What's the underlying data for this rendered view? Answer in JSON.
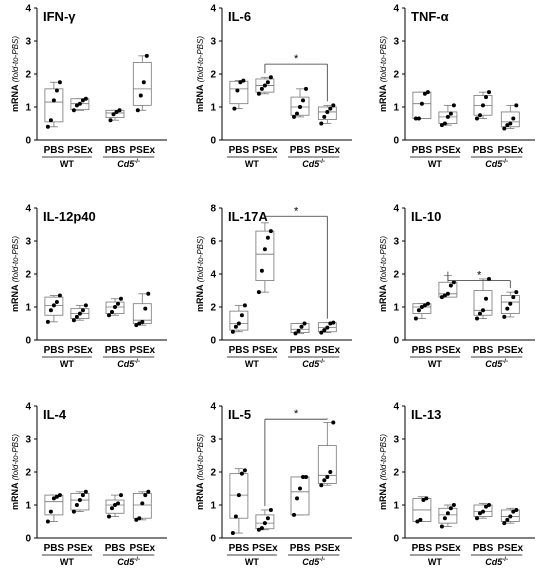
{
  "figure": {
    "y_label_main": "mRNA",
    "y_label_sub": "(fold-to-PBS)",
    "groups": [
      "WT",
      "Cd5"
    ],
    "group_sup": "-/-",
    "group_italic": [
      false,
      true
    ]
  },
  "chart_data": [
    {
      "type": "box",
      "title": "IFN-γ",
      "ylim": [
        0,
        4
      ],
      "yticks": [
        0,
        1,
        2,
        3,
        4
      ],
      "categories": [
        "PBS",
        "PSEx",
        "PBS",
        "PSEx"
      ],
      "series": [
        {
          "name": "WT PBS",
          "points": [
            0.4,
            0.6,
            1.2,
            1.5,
            1.75
          ],
          "box": [
            0.55,
            1.15,
            1.55
          ],
          "whisker": [
            0.4,
            1.75
          ]
        },
        {
          "name": "WT PSEx",
          "points": [
            0.9,
            1.05,
            1.1,
            1.2,
            1.25
          ],
          "box": [
            0.92,
            1.1,
            1.25
          ],
          "whisker": [
            0.9,
            1.25
          ]
        },
        {
          "name": "Cd5-/- PBS",
          "points": [
            0.6,
            0.78,
            0.85,
            0.9
          ],
          "box": [
            0.68,
            0.82,
            0.9
          ],
          "whisker": [
            0.6,
            0.9
          ]
        },
        {
          "name": "Cd5-/- PSEx",
          "points": [
            0.9,
            1.35,
            1.75,
            2.55
          ],
          "box": [
            1.05,
            1.55,
            2.35
          ],
          "whisker": [
            0.9,
            2.55
          ]
        }
      ],
      "significance": null
    },
    {
      "type": "box",
      "title": "IL-6",
      "ylim": [
        0,
        4
      ],
      "yticks": [
        0,
        1,
        2,
        3,
        4
      ],
      "categories": [
        "PBS",
        "PSEx",
        "PBS",
        "PSEx"
      ],
      "series": [
        {
          "name": "WT PBS",
          "points": [
            0.95,
            1.5,
            1.75,
            1.8
          ],
          "box": [
            1.1,
            1.55,
            1.78
          ],
          "whisker": [
            0.95,
            1.8
          ]
        },
        {
          "name": "WT PSEx",
          "points": [
            1.4,
            1.55,
            1.65,
            1.75,
            1.9
          ],
          "box": [
            1.45,
            1.65,
            1.85
          ],
          "whisker": [
            1.4,
            1.9
          ]
        },
        {
          "name": "Cd5-/- PBS",
          "points": [
            0.7,
            0.8,
            1.0,
            1.2,
            1.55
          ],
          "box": [
            0.75,
            1.0,
            1.3
          ],
          "whisker": [
            0.7,
            1.55
          ]
        },
        {
          "name": "Cd5-/- PSEx",
          "points": [
            0.5,
            0.7,
            0.85,
            0.95,
            1.05
          ],
          "box": [
            0.62,
            0.85,
            1.0
          ],
          "whisker": [
            0.5,
            1.05
          ]
        }
      ],
      "significance": {
        "from": 1,
        "to": 3,
        "y": 2.3,
        "label": "*"
      }
    },
    {
      "type": "box",
      "title": "TNF-α",
      "ylim": [
        0,
        4
      ],
      "yticks": [
        0,
        1,
        2,
        3,
        4
      ],
      "categories": [
        "PBS",
        "PSEx",
        "PBS",
        "PSEx"
      ],
      "series": [
        {
          "name": "WT PBS",
          "points": [
            0.65,
            0.65,
            1.1,
            1.4,
            1.45
          ],
          "box": [
            0.65,
            1.1,
            1.45
          ],
          "whisker": [
            0.65,
            1.45
          ]
        },
        {
          "name": "WT PSEx",
          "points": [
            0.45,
            0.5,
            0.7,
            0.8,
            1.05
          ],
          "box": [
            0.5,
            0.7,
            0.85
          ],
          "whisker": [
            0.45,
            1.05
          ]
        },
        {
          "name": "Cd5-/- PBS",
          "points": [
            0.65,
            0.75,
            1.05,
            1.3,
            1.45
          ],
          "box": [
            0.75,
            1.05,
            1.35
          ],
          "whisker": [
            0.65,
            1.45
          ]
        },
        {
          "name": "Cd5-/- PSEx",
          "points": [
            0.35,
            0.45,
            0.5,
            0.65,
            1.05
          ],
          "box": [
            0.4,
            0.55,
            0.85
          ],
          "whisker": [
            0.35,
            1.05
          ]
        }
      ],
      "significance": null
    },
    {
      "type": "box",
      "title": "IL-12p40",
      "ylim": [
        0,
        4
      ],
      "yticks": [
        0,
        1,
        2,
        3,
        4
      ],
      "categories": [
        "PBS",
        "PSEx",
        "PBS",
        "PSEx"
      ],
      "series": [
        {
          "name": "WT PBS",
          "points": [
            0.55,
            0.9,
            1.05,
            1.15,
            1.35
          ],
          "box": [
            0.75,
            1.05,
            1.3
          ],
          "whisker": [
            0.55,
            1.35
          ]
        },
        {
          "name": "WT PSEx",
          "points": [
            0.6,
            0.7,
            0.8,
            0.9,
            1.05
          ],
          "box": [
            0.65,
            0.8,
            0.95
          ],
          "whisker": [
            0.6,
            1.05
          ]
        },
        {
          "name": "Cd5-/- PBS",
          "points": [
            0.75,
            0.85,
            1.0,
            1.1,
            1.25
          ],
          "box": [
            0.8,
            1.0,
            1.15
          ],
          "whisker": [
            0.75,
            1.25
          ]
        },
        {
          "name": "Cd5-/- PSEx",
          "points": [
            0.45,
            0.5,
            0.55,
            0.95,
            1.4
          ],
          "box": [
            0.5,
            0.6,
            1.1
          ],
          "whisker": [
            0.45,
            1.4
          ]
        }
      ],
      "significance": null
    },
    {
      "type": "box",
      "title": "IL-17A",
      "ylim": [
        0,
        8
      ],
      "yticks": [
        0,
        2,
        4,
        6,
        8
      ],
      "categories": [
        "PBS",
        "PSEx",
        "PBS",
        "PSEx"
      ],
      "series": [
        {
          "name": "WT PBS",
          "points": [
            0.5,
            0.8,
            1.0,
            1.5,
            2.1
          ],
          "box": [
            0.6,
            1.0,
            1.75
          ],
          "whisker": [
            0.5,
            2.1
          ]
        },
        {
          "name": "WT PSEx",
          "points": [
            2.9,
            4.2,
            5.5,
            6.2,
            6.6
          ],
          "box": [
            3.6,
            5.2,
            6.6
          ],
          "whisker": [
            2.9,
            7.1
          ]
        },
        {
          "name": "Cd5-/- PBS",
          "points": [
            0.4,
            0.55,
            0.8,
            1.0
          ],
          "box": [
            0.45,
            0.65,
            1.0
          ],
          "whisker": [
            0.4,
            1.0
          ]
        },
        {
          "name": "Cd5-/- PSEx",
          "points": [
            0.45,
            0.6,
            0.75,
            1.0,
            1.05
          ],
          "box": [
            0.5,
            0.75,
            1.05
          ],
          "whisker": [
            0.45,
            1.05
          ]
        }
      ],
      "significance": {
        "from": 1,
        "to": 3,
        "y": 7.5,
        "label": "*"
      }
    },
    {
      "type": "box",
      "title": "IL-10",
      "ylim": [
        0,
        4
      ],
      "yticks": [
        0,
        1,
        2,
        3,
        4
      ],
      "categories": [
        "PBS",
        "PSEx",
        "PBS",
        "PSEx"
      ],
      "series": [
        {
          "name": "WT PBS",
          "points": [
            0.65,
            0.9,
            1.0,
            1.05,
            1.1
          ],
          "box": [
            0.8,
            1.0,
            1.1
          ],
          "whisker": [
            0.65,
            1.1
          ]
        },
        {
          "name": "WT PSEx",
          "points": [
            1.3,
            1.35,
            1.4,
            1.65,
            1.75
          ],
          "box": [
            1.3,
            1.4,
            1.75
          ],
          "whisker": [
            1.3,
            1.95
          ]
        },
        {
          "name": "Cd5-/- PBS",
          "points": [
            0.65,
            0.8,
            0.9,
            1.25,
            1.85
          ],
          "box": [
            0.75,
            0.9,
            1.5
          ],
          "whisker": [
            0.65,
            1.85
          ]
        },
        {
          "name": "Cd5-/- PSEx",
          "points": [
            0.7,
            0.95,
            1.1,
            1.3,
            1.45
          ],
          "box": [
            0.8,
            1.15,
            1.35
          ],
          "whisker": [
            0.7,
            1.45
          ]
        }
      ],
      "significance": {
        "from": 1,
        "to": 3,
        "y": 1.8,
        "label": "*"
      }
    },
    {
      "type": "box",
      "title": "IL-4",
      "ylim": [
        0,
        4
      ],
      "yticks": [
        0,
        1,
        2,
        3,
        4
      ],
      "categories": [
        "PBS",
        "PSEx",
        "PBS",
        "PSEx"
      ],
      "series": [
        {
          "name": "WT PBS",
          "points": [
            0.5,
            0.8,
            1.2,
            1.25,
            1.3
          ],
          "box": [
            0.7,
            1.1,
            1.3
          ],
          "whisker": [
            0.5,
            1.3
          ]
        },
        {
          "name": "WT PSEx",
          "points": [
            0.8,
            1.0,
            1.15,
            1.3,
            1.4
          ],
          "box": [
            0.85,
            1.15,
            1.35
          ],
          "whisker": [
            0.8,
            1.4
          ]
        },
        {
          "name": "Cd5-/- PBS",
          "points": [
            0.65,
            0.9,
            1.0,
            1.05,
            1.3
          ],
          "box": [
            0.75,
            1.0,
            1.15
          ],
          "whisker": [
            0.65,
            1.3
          ]
        },
        {
          "name": "Cd5-/- PSEx",
          "points": [
            0.55,
            0.6,
            1.05,
            1.3,
            1.4
          ],
          "box": [
            0.6,
            1.0,
            1.35
          ],
          "whisker": [
            0.55,
            1.4
          ]
        }
      ],
      "significance": null
    },
    {
      "type": "box",
      "title": "IL-5",
      "ylim": [
        0,
        4
      ],
      "yticks": [
        0,
        1,
        2,
        3,
        4
      ],
      "categories": [
        "PBS",
        "PSEx",
        "PBS",
        "PSEx"
      ],
      "series": [
        {
          "name": "WT PBS",
          "points": [
            0.15,
            0.65,
            1.3,
            1.95,
            2.05
          ],
          "box": [
            0.6,
            1.3,
            1.95
          ],
          "whisker": [
            0.15,
            2.1
          ]
        },
        {
          "name": "WT PSEx",
          "points": [
            0.25,
            0.3,
            0.45,
            0.6,
            0.85
          ],
          "box": [
            0.28,
            0.45,
            0.7
          ],
          "whisker": [
            0.25,
            0.85
          ]
        },
        {
          "name": "Cd5-/- PBS",
          "points": [
            0.7,
            1.2,
            1.5,
            1.85,
            1.85
          ],
          "box": [
            0.7,
            1.4,
            1.85
          ],
          "whisker": [
            0.7,
            1.85
          ]
        },
        {
          "name": "Cd5-/- PSEx",
          "points": [
            1.6,
            1.75,
            1.85,
            2.0,
            3.5
          ],
          "box": [
            1.65,
            1.9,
            2.8
          ],
          "whisker": [
            1.6,
            3.5
          ]
        }
      ],
      "significance": {
        "from": 1,
        "to": 3,
        "y": 3.6,
        "label": "*"
      }
    },
    {
      "type": "box",
      "title": "IL-13",
      "ylim": [
        0,
        4
      ],
      "yticks": [
        0,
        1,
        2,
        3,
        4
      ],
      "categories": [
        "PBS",
        "PSEx",
        "PBS",
        "PSEx"
      ],
      "series": [
        {
          "name": "WT PBS",
          "points": [
            0.5,
            0.55,
            1.15,
            1.2
          ],
          "box": [
            0.5,
            0.85,
            1.2
          ],
          "whisker": [
            0.5,
            1.25
          ]
        },
        {
          "name": "WT PSEx",
          "points": [
            0.35,
            0.6,
            0.75,
            0.9,
            1.0
          ],
          "box": [
            0.45,
            0.7,
            0.9
          ],
          "whisker": [
            0.35,
            1.0
          ]
        },
        {
          "name": "Cd5-/- PBS",
          "points": [
            0.6,
            0.75,
            0.8,
            0.95,
            1.0
          ],
          "box": [
            0.65,
            0.8,
            1.0
          ],
          "whisker": [
            0.6,
            1.05
          ]
        },
        {
          "name": "Cd5-/- PSEx",
          "points": [
            0.45,
            0.55,
            0.65,
            0.8,
            0.85
          ],
          "box": [
            0.5,
            0.65,
            0.85
          ],
          "whisker": [
            0.45,
            0.9
          ]
        }
      ],
      "significance": null
    }
  ]
}
